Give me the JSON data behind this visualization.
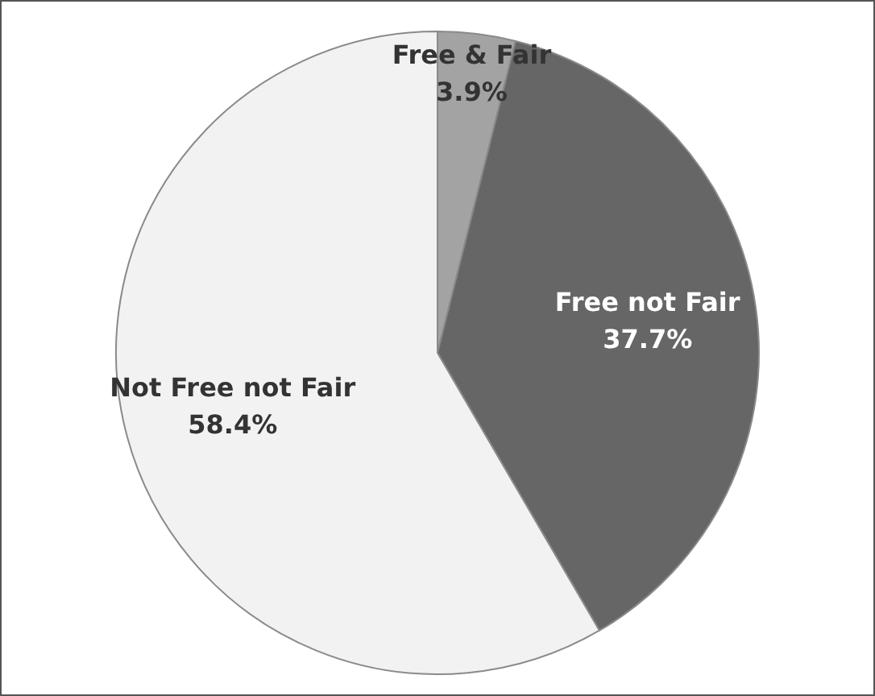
{
  "chart_data": {
    "type": "pie",
    "categories": [
      "Free & Fair",
      "Free not Fair",
      "Not Free not Fair"
    ],
    "values": [
      3.9,
      37.7,
      58.4
    ],
    "colors": [
      "#a3a3a3",
      "#666666",
      "#f2f2f2"
    ],
    "value_labels": [
      "3.9%",
      "37.7%",
      "58.4%"
    ],
    "legend": false
  }
}
